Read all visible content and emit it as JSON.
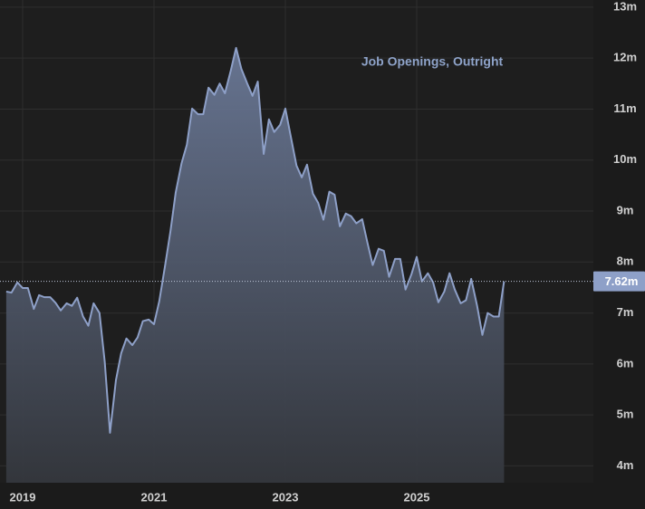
{
  "chart_data": {
    "type": "area",
    "title": "Job Openings, Outright",
    "color": "#8ea0c8",
    "grid": true,
    "x": [
      2018.75,
      2018.83,
      2018.92,
      2019,
      2019.08,
      2019.17,
      2019.25,
      2019.33,
      2019.42,
      2019.5,
      2019.58,
      2019.67,
      2019.75,
      2019.83,
      2019.92,
      2020,
      2020.08,
      2020.17,
      2020.25,
      2020.33,
      2020.42,
      2020.5,
      2020.58,
      2020.67,
      2020.75,
      2020.83,
      2020.92,
      2021,
      2021.08,
      2021.17,
      2021.25,
      2021.33,
      2021.42,
      2021.5,
      2021.58,
      2021.67,
      2021.75,
      2021.83,
      2021.92,
      2022,
      2022.08,
      2022.17,
      2022.25,
      2022.33,
      2022.42,
      2022.5,
      2022.58,
      2022.67,
      2022.75,
      2022.83,
      2022.92,
      2023,
      2023.08,
      2023.17,
      2023.25,
      2023.33,
      2023.42,
      2023.5,
      2023.58,
      2023.67,
      2023.75,
      2023.83,
      2023.92,
      2024,
      2024.08,
      2024.17,
      2024.25,
      2024.33,
      2024.42,
      2024.5,
      2024.58,
      2024.67,
      2024.75,
      2024.83,
      2024.92,
      2025,
      2025.08,
      2025.17,
      2025.25,
      2025.33,
      2025.42,
      2025.5,
      2025.58,
      2025.67,
      2025.75,
      2025.83,
      2025.92,
      2026,
      2026.08,
      2026.17,
      2026.25,
      2026.33
    ],
    "values": [
      7.42,
      7.4,
      7.6,
      7.49,
      7.49,
      7.08,
      7.35,
      7.31,
      7.31,
      7.2,
      7.05,
      7.19,
      7.14,
      7.3,
      6.93,
      6.75,
      7.19,
      7.0,
      6.04,
      4.65,
      5.68,
      6.21,
      6.5,
      6.37,
      6.52,
      6.84,
      6.87,
      6.78,
      7.23,
      7.94,
      8.6,
      9.36,
      9.94,
      10.3,
      11.01,
      10.9,
      10.9,
      11.42,
      11.28,
      11.5,
      11.31,
      11.76,
      12.2,
      11.79,
      11.5,
      11.26,
      11.54,
      10.12,
      10.8,
      10.55,
      10.69,
      11.01,
      10.48,
      9.89,
      9.66,
      9.91,
      9.34,
      9.16,
      8.83,
      9.38,
      9.32,
      8.7,
      8.95,
      8.9,
      8.76,
      8.84,
      8.38,
      7.94,
      8.26,
      8.22,
      7.71,
      8.06,
      8.06,
      7.46,
      7.76,
      8.1,
      7.62,
      7.78,
      7.6,
      7.21,
      7.42,
      7.78,
      7.46,
      7.19,
      7.25,
      7.67,
      7.14,
      6.57,
      7.0,
      6.93,
      6.93,
      7.62
    ],
    "xlim": [
      2018.655,
      2027.69
    ],
    "ylim": [
      3.67,
      13.14
    ],
    "xticks": [
      2019,
      2021,
      2023,
      2025
    ],
    "yticks": [
      {
        "value": 4,
        "label": "4m"
      },
      {
        "value": 5,
        "label": "5m"
      },
      {
        "value": 6,
        "label": "6m"
      },
      {
        "value": 7,
        "label": "7m"
      },
      {
        "value": 8,
        "label": "8m"
      },
      {
        "value": 9,
        "label": "9m"
      },
      {
        "value": 10,
        "label": "10m"
      },
      {
        "value": 11,
        "label": "11m"
      },
      {
        "value": 12,
        "label": "12m"
      },
      {
        "value": 13,
        "label": "13m"
      }
    ],
    "current_label": {
      "value": 7.62,
      "label": "7.62m"
    }
  }
}
